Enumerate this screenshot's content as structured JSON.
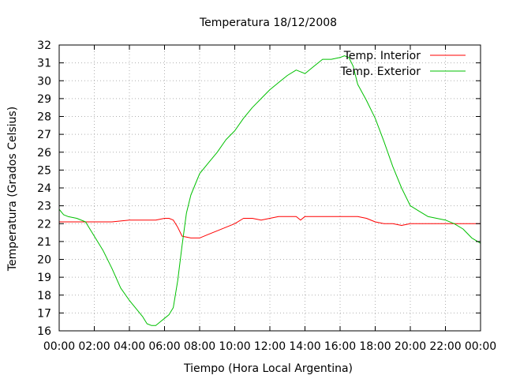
{
  "chart_data": {
    "type": "line",
    "title": "Temperatura 18/12/2008",
    "xlabel": "Tiempo (Hora Local Argentina)",
    "ylabel": "Temperatura (Grados Celsius)",
    "ylim": [
      16,
      32
    ],
    "y_ticks": [
      "16",
      "17",
      "18",
      "19",
      "20",
      "21",
      "22",
      "23",
      "24",
      "25",
      "26",
      "27",
      "28",
      "29",
      "30",
      "31",
      "32"
    ],
    "x_ticks": [
      "00:00",
      "02:00",
      "04:00",
      "06:00",
      "08:00",
      "10:00",
      "12:00",
      "14:00",
      "16:00",
      "18:00",
      "20:00",
      "22:00",
      "00:00"
    ],
    "grid": true,
    "legend_position": "top-right",
    "series": [
      {
        "name": "Temp. Interior",
        "color": "#ff0000",
        "x": [
          "00:00",
          "01:00",
          "02:00",
          "03:00",
          "04:00",
          "05:00",
          "05:30",
          "06:00",
          "06:15",
          "06:30",
          "06:45",
          "07:00",
          "07:30",
          "08:00",
          "08:30",
          "09:00",
          "09:30",
          "10:00",
          "10:30",
          "11:00",
          "11:30",
          "12:00",
          "12:30",
          "13:00",
          "13:30",
          "13:45",
          "14:00",
          "14:30",
          "15:00",
          "15:30",
          "16:00",
          "16:30",
          "17:00",
          "17:30",
          "18:00",
          "18:30",
          "19:00",
          "19:30",
          "20:00",
          "20:30",
          "21:00",
          "21:30",
          "22:00",
          "22:30",
          "23:00",
          "23:30",
          "24:00"
        ],
        "y": [
          22.1,
          22.1,
          22.1,
          22.1,
          22.2,
          22.2,
          22.2,
          22.3,
          22.3,
          22.2,
          21.8,
          21.3,
          21.2,
          21.2,
          21.4,
          21.6,
          21.8,
          22.0,
          22.3,
          22.3,
          22.2,
          22.3,
          22.4,
          22.4,
          22.4,
          22.2,
          22.4,
          22.4,
          22.4,
          22.4,
          22.4,
          22.4,
          22.4,
          22.3,
          22.1,
          22.0,
          22.0,
          21.9,
          22.0,
          22.0,
          22.0,
          22.0,
          22.0,
          22.0,
          22.0,
          22.0,
          22.0
        ]
      },
      {
        "name": "Temp. Exterior",
        "color": "#00c000",
        "x": [
          "00:00",
          "00:15",
          "00:30",
          "01:00",
          "01:30",
          "02:00",
          "02:30",
          "03:00",
          "03:30",
          "04:00",
          "04:30",
          "04:45",
          "05:00",
          "05:15",
          "05:30",
          "05:45",
          "06:00",
          "06:15",
          "06:30",
          "06:45",
          "07:00",
          "07:15",
          "07:30",
          "07:45",
          "08:00",
          "08:30",
          "09:00",
          "09:30",
          "10:00",
          "10:30",
          "11:00",
          "11:30",
          "12:00",
          "12:30",
          "13:00",
          "13:30",
          "14:00",
          "14:30",
          "15:00",
          "15:30",
          "16:00",
          "16:15",
          "16:30",
          "16:45",
          "17:00",
          "17:30",
          "18:00",
          "18:30",
          "19:00",
          "19:30",
          "20:00",
          "20:30",
          "21:00",
          "21:30",
          "22:00",
          "22:30",
          "23:00",
          "23:30",
          "24:00"
        ],
        "y": [
          22.8,
          22.5,
          22.4,
          22.3,
          22.1,
          21.3,
          20.5,
          19.5,
          18.4,
          17.7,
          17.1,
          16.8,
          16.4,
          16.3,
          16.3,
          16.5,
          16.7,
          16.9,
          17.3,
          18.8,
          20.8,
          22.6,
          23.6,
          24.2,
          24.8,
          25.4,
          26.0,
          26.7,
          27.2,
          27.9,
          28.5,
          29.0,
          29.5,
          29.9,
          30.3,
          30.6,
          30.4,
          30.8,
          31.2,
          31.2,
          31.3,
          31.4,
          31.3,
          30.8,
          29.8,
          28.9,
          27.9,
          26.6,
          25.2,
          24.0,
          23.0,
          22.7,
          22.4,
          22.3,
          22.2,
          22.0,
          21.7,
          21.2,
          20.9
        ]
      }
    ]
  }
}
